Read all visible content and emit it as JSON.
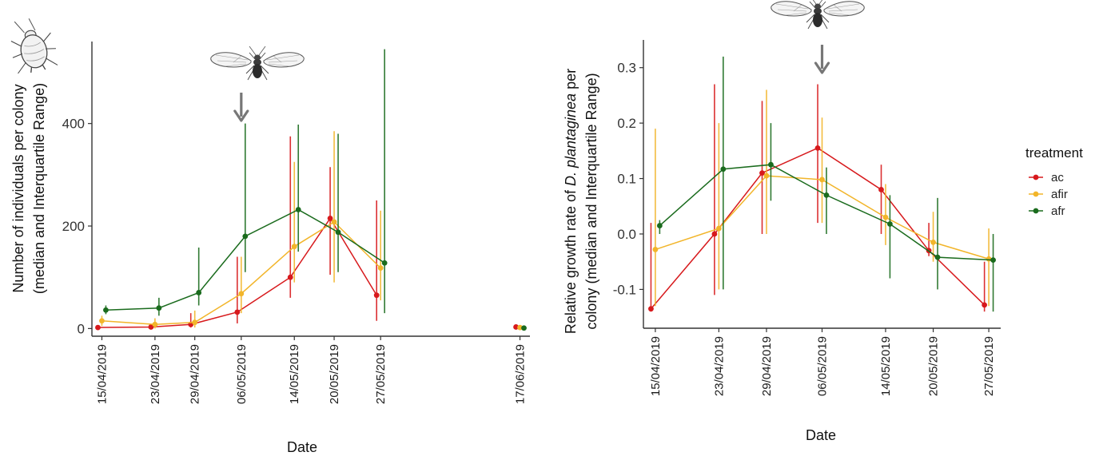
{
  "chart_data": [
    {
      "type": "line",
      "xlabel": "Date",
      "ylabel_line1": "Number of individuals per colony",
      "ylabel_line2": "(median and Interquartile Range)",
      "ylim": [
        -15,
        560
      ],
      "y_ticks": [
        0,
        200,
        400
      ],
      "x_dates": [
        "15/04/2019",
        "23/04/2019",
        "29/04/2019",
        "06/05/2019",
        "14/05/2019",
        "20/05/2019",
        "27/05/2019",
        "17/06/2019"
      ],
      "x_day": [
        0,
        8,
        14,
        21,
        29,
        35,
        42,
        63
      ],
      "x_range": [
        -1.5,
        64.5
      ],
      "arrow_at_day": 21,
      "series": [
        {
          "name": "ac",
          "color": "#d7191c",
          "offset": -0.6,
          "points": [
            {
              "x": 0,
              "y": 2,
              "lo": 0,
              "hi": 6
            },
            {
              "x": 8,
              "y": 3,
              "lo": 0,
              "hi": 8
            },
            {
              "x": 14,
              "y": 8,
              "lo": 2,
              "hi": 30
            },
            {
              "x": 21,
              "y": 32,
              "lo": 10,
              "hi": 140
            },
            {
              "x": 29,
              "y": 100,
              "lo": 60,
              "hi": 375
            },
            {
              "x": 35,
              "y": 215,
              "lo": 105,
              "hi": 315
            },
            {
              "x": 42,
              "y": 65,
              "lo": 15,
              "hi": 250
            },
            {
              "x": 63,
              "y": 3,
              "lo": 0,
              "hi": 8
            }
          ]
        },
        {
          "name": "afir",
          "color": "#f2b52a",
          "offset": 0,
          "points": [
            {
              "x": 0,
              "y": 15,
              "lo": 5,
              "hi": 25
            },
            {
              "x": 8,
              "y": 8,
              "lo": 0,
              "hi": 20
            },
            {
              "x": 14,
              "y": 12,
              "lo": 2,
              "hi": 35
            },
            {
              "x": 21,
              "y": 68,
              "lo": 30,
              "hi": 140
            },
            {
              "x": 29,
              "y": 160,
              "lo": 90,
              "hi": 325
            },
            {
              "x": 35,
              "y": 208,
              "lo": 90,
              "hi": 385
            },
            {
              "x": 42,
              "y": 118,
              "lo": 55,
              "hi": 230
            },
            {
              "x": 63,
              "y": 2,
              "lo": 0,
              "hi": 5
            }
          ]
        },
        {
          "name": "afr",
          "color": "#1a6b1d",
          "offset": 0.6,
          "points": [
            {
              "x": 0,
              "y": 36,
              "lo": 28,
              "hi": 45
            },
            {
              "x": 8,
              "y": 40,
              "lo": 25,
              "hi": 60
            },
            {
              "x": 14,
              "y": 70,
              "lo": 45,
              "hi": 158
            },
            {
              "x": 21,
              "y": 180,
              "lo": 110,
              "hi": 400
            },
            {
              "x": 29,
              "y": 232,
              "lo": 150,
              "hi": 398
            },
            {
              "x": 35,
              "y": 188,
              "lo": 110,
              "hi": 380
            },
            {
              "x": 42,
              "y": 128,
              "lo": 30,
              "hi": 545
            },
            {
              "x": 63,
              "y": 1,
              "lo": 0,
              "hi": 3
            }
          ]
        }
      ]
    },
    {
      "type": "line",
      "xlabel": "Date",
      "ylabel_line1_pre": "Relative growth rate of ",
      "ylabel_line1_species": "D. plantaginea",
      "ylabel_line1_post": " per",
      "ylabel_line2": "colony (median and Interquartile Range)",
      "ylim": [
        -0.17,
        0.35
      ],
      "y_ticks": [
        -0.1,
        0.0,
        0.1,
        0.2,
        0.3
      ],
      "y_tick_labels": [
        "-0.1",
        "0.0",
        "0.1",
        "0.2",
        "0.3"
      ],
      "x_dates": [
        "15/04/2019",
        "23/04/2019",
        "29/04/2019",
        "06/05/2019",
        "14/05/2019",
        "20/05/2019",
        "27/05/2019"
      ],
      "x_day": [
        0,
        8,
        14,
        21,
        29,
        35,
        42
      ],
      "x_range": [
        -1.5,
        43.5
      ],
      "arrow_at_day": 21,
      "series": [
        {
          "name": "ac",
          "color": "#d7191c",
          "offset": -0.55,
          "points": [
            {
              "x": 0,
              "y": -0.135,
              "lo": -0.14,
              "hi": 0.02
            },
            {
              "x": 8,
              "y": 0.0,
              "lo": -0.11,
              "hi": 0.27
            },
            {
              "x": 14,
              "y": 0.11,
              "lo": 0.0,
              "hi": 0.24
            },
            {
              "x": 21,
              "y": 0.155,
              "lo": 0.02,
              "hi": 0.27
            },
            {
              "x": 29,
              "y": 0.08,
              "lo": 0.0,
              "hi": 0.125
            },
            {
              "x": 35,
              "y": -0.03,
              "lo": -0.04,
              "hi": 0.02
            },
            {
              "x": 42,
              "y": -0.128,
              "lo": -0.14,
              "hi": -0.05
            }
          ]
        },
        {
          "name": "afir",
          "color": "#f2b52a",
          "offset": 0,
          "points": [
            {
              "x": 0,
              "y": -0.028,
              "lo": -0.13,
              "hi": 0.19
            },
            {
              "x": 8,
              "y": 0.01,
              "lo": -0.1,
              "hi": 0.2
            },
            {
              "x": 14,
              "y": 0.105,
              "lo": 0.0,
              "hi": 0.26
            },
            {
              "x": 21,
              "y": 0.098,
              "lo": 0.02,
              "hi": 0.21
            },
            {
              "x": 29,
              "y": 0.03,
              "lo": -0.02,
              "hi": 0.09
            },
            {
              "x": 35,
              "y": -0.015,
              "lo": -0.05,
              "hi": 0.04
            },
            {
              "x": 42,
              "y": -0.045,
              "lo": -0.13,
              "hi": 0.01
            }
          ]
        },
        {
          "name": "afr",
          "color": "#1a6b1d",
          "offset": 0.55,
          "points": [
            {
              "x": 0,
              "y": 0.015,
              "lo": 0.0,
              "hi": 0.025
            },
            {
              "x": 8,
              "y": 0.117,
              "lo": -0.1,
              "hi": 0.32
            },
            {
              "x": 14,
              "y": 0.125,
              "lo": 0.06,
              "hi": 0.2
            },
            {
              "x": 21,
              "y": 0.07,
              "lo": 0.0,
              "hi": 0.12
            },
            {
              "x": 29,
              "y": 0.018,
              "lo": -0.08,
              "hi": 0.07
            },
            {
              "x": 35,
              "y": -0.042,
              "lo": -0.1,
              "hi": 0.065
            },
            {
              "x": 42,
              "y": -0.047,
              "lo": -0.14,
              "hi": 0.0
            }
          ]
        }
      ]
    }
  ],
  "legend": {
    "title": "treatment",
    "items": [
      {
        "label": "ac",
        "color": "#d7191c"
      },
      {
        "label": "afir",
        "color": "#f2b52a"
      },
      {
        "label": "afr",
        "color": "#1a6b1d"
      }
    ]
  },
  "icons": {
    "aphid_wingless": "wingless-aphid-icon",
    "aphid_winged": "winged-aphid-icon",
    "arrow": "down-arrow-icon"
  },
  "colors": {
    "axis": "#333333",
    "arrow": "#777777"
  }
}
